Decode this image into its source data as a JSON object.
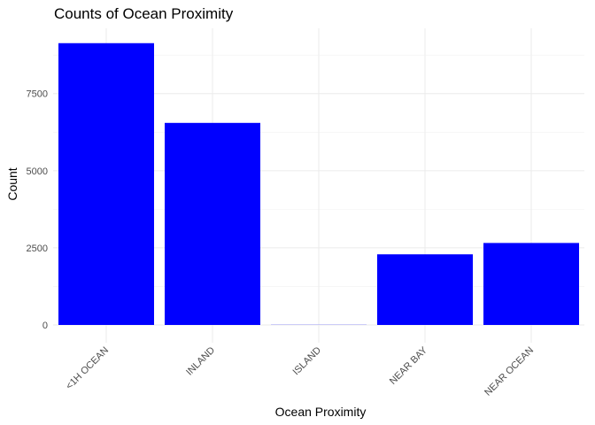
{
  "chart_data": {
    "type": "bar",
    "title": "Counts of Ocean Proximity",
    "xlabel": "Ocean Proximity",
    "ylabel": "Count",
    "categories": [
      "<1H OCEAN",
      "INLAND",
      "ISLAND",
      "NEAR BAY",
      "NEAR OCEAN"
    ],
    "values": [
      9136,
      6551,
      5,
      2290,
      2658
    ],
    "ylim": [
      0,
      9600
    ],
    "yticks": [
      0,
      2500,
      5000,
      7500
    ],
    "grid": true,
    "bar_color": "#0000FF",
    "legend": "none"
  }
}
